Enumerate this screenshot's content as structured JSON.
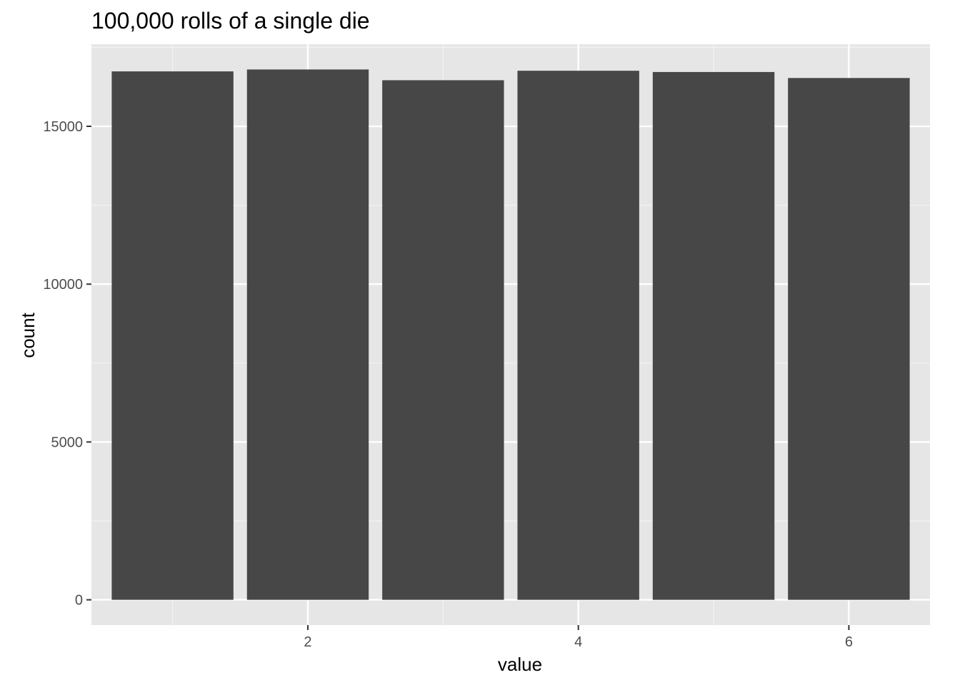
{
  "chart_data": {
    "type": "bar",
    "title": "100,000 rolls of a single die",
    "xlabel": "value",
    "ylabel": "count",
    "x": [
      1,
      2,
      3,
      4,
      5,
      6
    ],
    "values": [
      16740,
      16800,
      16460,
      16760,
      16720,
      16530
    ],
    "xlim": [
      0.4,
      6.6
    ],
    "ylim": [
      -800,
      17600
    ],
    "x_ticks": [
      2,
      4,
      6
    ],
    "x_tick_labels": [
      "2",
      "4",
      "6"
    ],
    "y_ticks": [
      0,
      5000,
      10000,
      15000
    ],
    "y_tick_labels": [
      "0",
      "5000",
      "10000",
      "15000"
    ],
    "grid": true,
    "legend": "none",
    "colors": {
      "bar": "#474747",
      "panel_background": "#e6e6e6",
      "grid_major": "#ffffff",
      "grid_minor": "#f2f2f2",
      "tick_label": "#4d4d4d"
    }
  }
}
